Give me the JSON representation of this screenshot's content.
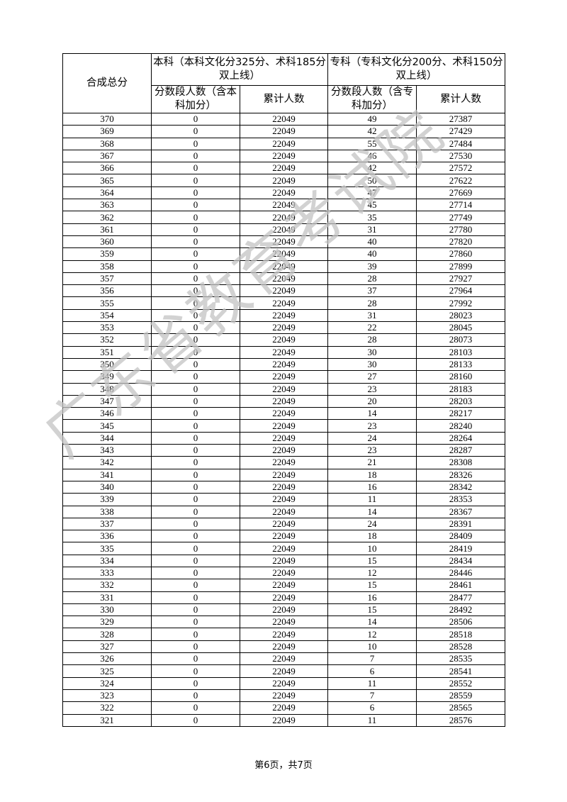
{
  "watermark": "广东省教育考试院",
  "header": {
    "score": "合成总分",
    "undergrad": "本科（本科文化分325分、术科185分双上线）",
    "junior": "专科（专科文化分200分、术科150分双上线）",
    "ug_count": "分数段人数（含本科加分）",
    "ug_cum": "累计人数",
    "jc_count": "分数段人数（含专科加分）",
    "jc_cum": "累计人数"
  },
  "rows": [
    [
      "370",
      "0",
      "22049",
      "49",
      "27387"
    ],
    [
      "369",
      "0",
      "22049",
      "42",
      "27429"
    ],
    [
      "368",
      "0",
      "22049",
      "55",
      "27484"
    ],
    [
      "367",
      "0",
      "22049",
      "46",
      "27530"
    ],
    [
      "366",
      "0",
      "22049",
      "42",
      "27572"
    ],
    [
      "365",
      "0",
      "22049",
      "50",
      "27622"
    ],
    [
      "364",
      "0",
      "22049",
      "47",
      "27669"
    ],
    [
      "363",
      "0",
      "22049",
      "45",
      "27714"
    ],
    [
      "362",
      "0",
      "22049",
      "35",
      "27749"
    ],
    [
      "361",
      "0",
      "22049",
      "31",
      "27780"
    ],
    [
      "360",
      "0",
      "22049",
      "40",
      "27820"
    ],
    [
      "359",
      "0",
      "22049",
      "40",
      "27860"
    ],
    [
      "358",
      "0",
      "22049",
      "39",
      "27899"
    ],
    [
      "357",
      "0",
      "22049",
      "28",
      "27927"
    ],
    [
      "356",
      "0",
      "22049",
      "37",
      "27964"
    ],
    [
      "355",
      "0",
      "22049",
      "28",
      "27992"
    ],
    [
      "354",
      "0",
      "22049",
      "31",
      "28023"
    ],
    [
      "353",
      "0",
      "22049",
      "22",
      "28045"
    ],
    [
      "352",
      "0",
      "22049",
      "28",
      "28073"
    ],
    [
      "351",
      "0",
      "22049",
      "30",
      "28103"
    ],
    [
      "350",
      "0",
      "22049",
      "30",
      "28133"
    ],
    [
      "349",
      "0",
      "22049",
      "27",
      "28160"
    ],
    [
      "348",
      "0",
      "22049",
      "23",
      "28183"
    ],
    [
      "347",
      "0",
      "22049",
      "20",
      "28203"
    ],
    [
      "346",
      "0",
      "22049",
      "14",
      "28217"
    ],
    [
      "345",
      "0",
      "22049",
      "23",
      "28240"
    ],
    [
      "344",
      "0",
      "22049",
      "24",
      "28264"
    ],
    [
      "343",
      "0",
      "22049",
      "23",
      "28287"
    ],
    [
      "342",
      "0",
      "22049",
      "21",
      "28308"
    ],
    [
      "341",
      "0",
      "22049",
      "18",
      "28326"
    ],
    [
      "340",
      "0",
      "22049",
      "16",
      "28342"
    ],
    [
      "339",
      "0",
      "22049",
      "11",
      "28353"
    ],
    [
      "338",
      "0",
      "22049",
      "14",
      "28367"
    ],
    [
      "337",
      "0",
      "22049",
      "24",
      "28391"
    ],
    [
      "336",
      "0",
      "22049",
      "18",
      "28409"
    ],
    [
      "335",
      "0",
      "22049",
      "10",
      "28419"
    ],
    [
      "334",
      "0",
      "22049",
      "15",
      "28434"
    ],
    [
      "333",
      "0",
      "22049",
      "12",
      "28446"
    ],
    [
      "332",
      "0",
      "22049",
      "15",
      "28461"
    ],
    [
      "331",
      "0",
      "22049",
      "16",
      "28477"
    ],
    [
      "330",
      "0",
      "22049",
      "15",
      "28492"
    ],
    [
      "329",
      "0",
      "22049",
      "14",
      "28506"
    ],
    [
      "328",
      "0",
      "22049",
      "12",
      "28518"
    ],
    [
      "327",
      "0",
      "22049",
      "10",
      "28528"
    ],
    [
      "326",
      "0",
      "22049",
      "7",
      "28535"
    ],
    [
      "325",
      "0",
      "22049",
      "6",
      "28541"
    ],
    [
      "324",
      "0",
      "22049",
      "11",
      "28552"
    ],
    [
      "323",
      "0",
      "22049",
      "7",
      "28559"
    ],
    [
      "322",
      "0",
      "22049",
      "6",
      "28565"
    ],
    [
      "321",
      "0",
      "22049",
      "11",
      "28576"
    ]
  ],
  "footer": {
    "prefix": "第",
    "page": "6",
    "mid": "页，共",
    "total": "7",
    "suffix": "页"
  }
}
